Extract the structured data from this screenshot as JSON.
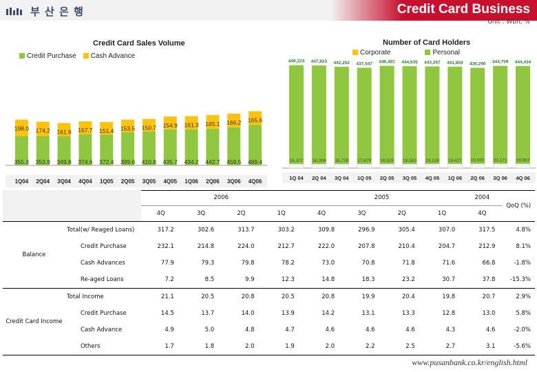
{
  "header": {
    "logo_text": "부 산 은 행",
    "title": "Credit Card Business",
    "unit": "Unit : Wbn, %"
  },
  "colors": {
    "green": "#8fc73e",
    "yellow": "#ffc20e",
    "pink": "#e4007f",
    "header_red": "#c8102e"
  },
  "chart_data": [
    {
      "type": "bar",
      "stacked": true,
      "title": "Credit Card Sales Volume",
      "categories": [
        "1Q04",
        "2Q04",
        "3Q04",
        "4Q04",
        "1Q05",
        "2Q05",
        "3Q05",
        "4Q05",
        "1Q06",
        "2Q06",
        "3Q06",
        "4Q06"
      ],
      "series": [
        {
          "name": "Credit Purchase",
          "color": "#8fc73e",
          "values": [
            355.3,
            353.9,
            349.8,
            374.6,
            372.4,
            399.6,
            410.8,
            435.7,
            434.2,
            442.7,
            459.5,
            489.4
          ]
        },
        {
          "name": "Cash Advance",
          "color": "#ffc20e",
          "values": [
            198.0,
            174.2,
            161.9,
            157.7,
            151.4,
            153.5,
            150.7,
            154.9,
            161.3,
            165.1,
            166.2,
            165.6
          ]
        }
      ],
      "legend_position": "top-left",
      "grid": false
    },
    {
      "type": "bar",
      "stacked": true,
      "title": "Number of Card Holders",
      "categories": [
        "1Q 04",
        "2Q 04",
        "3Q 04",
        "1Q 05",
        "2Q 05",
        "3Q 05",
        "4Q 05",
        "1Q 06",
        "2Q 06",
        "3Q 06",
        "4Q 06"
      ],
      "series": [
        {
          "name": "Corporate",
          "color": "#ffc20e",
          "values": [
            16107,
            16308,
            16729,
            17679,
            18525,
            18583,
            19129,
            19427,
            19930,
            20171,
            19967
          ],
          "labels": [
            "16,107",
            "16,308",
            "16,729",
            "17,679",
            "18,525",
            "18,583",
            "19,129",
            "19,427",
            "19,930",
            "20,171",
            "19,967"
          ]
        },
        {
          "name": "Personal",
          "color": "#8fc73e",
          "values": [
            449224,
            447923,
            442252,
            437547,
            446481,
            444635,
            443287,
            441859,
            436290,
            444759,
            444434
          ],
          "labels": [
            "449,224",
            "447,923",
            "442,252",
            "437,547",
            "446,481",
            "444,635",
            "443,287",
            "441,859",
            "436,290",
            "444,759",
            "444,434"
          ]
        }
      ],
      "legend_position": "top-left",
      "grid": false
    }
  ],
  "table": {
    "year_headers": [
      "2006",
      "2005",
      "2004"
    ],
    "quarter_headers": [
      "4Q",
      "3Q",
      "2Q",
      "1Q",
      "4Q",
      "3Q",
      "2Q",
      "1Q",
      "4Q"
    ],
    "qoq_header": "QoQ (%)",
    "groups": [
      {
        "label": "Balance",
        "rows": [
          {
            "label": "Total(w/ Reaged Loans)",
            "indent": false,
            "values": [
              "317.2",
              "302.6",
              "313.7",
              "303.2",
              "309.8",
              "296.9",
              "305.4",
              "307.0",
              "317.5"
            ],
            "qoq": "4.8%"
          },
          {
            "label": "Credit Purchase",
            "indent": true,
            "values": [
              "232.1",
              "214.8",
              "224.0",
              "212.7",
              "222.0",
              "207.8",
              "210.4",
              "204.7",
              "212.9"
            ],
            "qoq": "8.1%"
          },
          {
            "label": "Cash Advances",
            "indent": true,
            "values": [
              "77.9",
              "79.3",
              "79.8",
              "78.2",
              "73.0",
              "70.8",
              "71.8",
              "71.6",
              "66.8"
            ],
            "qoq": "-1.8%"
          },
          {
            "label": "Re-aged Loans",
            "indent": true,
            "values": [
              "7.2",
              "8.5",
              "9.9",
              "12.3",
              "14.8",
              "18.3",
              "23.2",
              "30.7",
              "37.8"
            ],
            "qoq": "-15.3%"
          }
        ]
      },
      {
        "label": "Credit Card Income",
        "rows": [
          {
            "label": "Total Income",
            "indent": false,
            "values": [
              "21.1",
              "20.5",
              "20.8",
              "20.5",
              "20.8",
              "19.9",
              "20.4",
              "19.8",
              "20.7"
            ],
            "qoq": "2.9%"
          },
          {
            "label": "Credit Purchase",
            "indent": true,
            "values": [
              "14.5",
              "13.7",
              "14.0",
              "13.9",
              "14.2",
              "13.1",
              "13.3",
              "12.8",
              "13.0"
            ],
            "qoq": "5.8%"
          },
          {
            "label": "Cash Advance",
            "indent": true,
            "values": [
              "4.9",
              "5.0",
              "4.8",
              "4.7",
              "4.6",
              "4.6",
              "4.6",
              "4.3",
              "4.6"
            ],
            "qoq": "-2.0%"
          },
          {
            "label": "Others",
            "indent": true,
            "values": [
              "1.7",
              "1.8",
              "2.0",
              "1.9",
              "2.0",
              "2.2",
              "2.5",
              "2.7",
              "3.1"
            ],
            "qoq": "-5.6%"
          }
        ]
      }
    ]
  },
  "footer": {
    "url": "www.pusanbank.co.kr/english.html"
  }
}
